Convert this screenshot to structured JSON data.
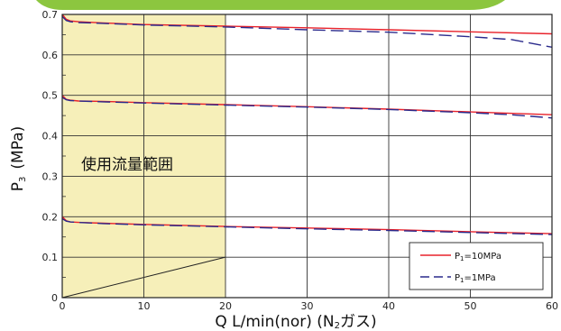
{
  "chart_data": {
    "type": "line",
    "xlabel": "Q L/min(nor) (N",
    "xlabel_sub": "2",
    "xlabel_tail": "ガス)",
    "ylabel": "P",
    "ylabel_sub": "3",
    "ylabel_tail": "(MPa)",
    "xlim": [
      0,
      60
    ],
    "ylim": [
      0,
      0.7
    ],
    "x_ticks": [
      0,
      10,
      20,
      30,
      40,
      50,
      60
    ],
    "y_ticks": [
      0,
      0.1,
      0.2,
      0.3,
      0.4,
      0.5,
      0.6,
      0.7
    ],
    "x_tick_labels": [
      "0",
      "10",
      "20",
      "30",
      "40",
      "50",
      "60"
    ],
    "y_tick_labels": [
      "0",
      "0.1",
      "0.2",
      "0.3",
      "0.4",
      "0.5",
      "0.6",
      "0.7"
    ],
    "grid": true,
    "region": {
      "label": "使用流量範囲",
      "x_range": [
        0,
        20
      ],
      "boundary_line": [
        [
          0,
          0
        ],
        [
          20,
          0.1
        ]
      ],
      "color": "#f6efb9"
    },
    "legend": {
      "placement": "bottom-right",
      "entries": [
        {
          "label_main": "P",
          "label_sub": "1",
          "label_tail": "=10MPa",
          "color": "#e8222b",
          "style": "solid"
        },
        {
          "label_main": "P",
          "label_sub": "1",
          "label_tail": "=1MPa",
          "color": "#2a2a8c",
          "style": "dashed"
        }
      ]
    },
    "series": [
      {
        "legend_index": 0,
        "color": "#e8222b",
        "style": "solid",
        "x": [
          0,
          0.5,
          1,
          2,
          5,
          10,
          20,
          30,
          40,
          50,
          60
        ],
        "y": [
          0.7,
          0.688,
          0.684,
          0.682,
          0.679,
          0.675,
          0.671,
          0.667,
          0.662,
          0.657,
          0.652
        ]
      },
      {
        "legend_index": 1,
        "color": "#2a2a8c",
        "style": "dashed",
        "x": [
          0,
          0.5,
          1,
          2,
          5,
          10,
          20,
          30,
          40,
          50,
          55,
          60
        ],
        "y": [
          0.695,
          0.685,
          0.682,
          0.68,
          0.678,
          0.674,
          0.669,
          0.662,
          0.656,
          0.645,
          0.638,
          0.619
        ]
      },
      {
        "legend_index": 0,
        "color": "#e8222b",
        "style": "solid",
        "x": [
          0,
          0.5,
          1,
          2,
          5,
          10,
          20,
          30,
          40,
          50,
          60
        ],
        "y": [
          0.5,
          0.49,
          0.488,
          0.486,
          0.485,
          0.482,
          0.477,
          0.472,
          0.466,
          0.459,
          0.452
        ]
      },
      {
        "legend_index": 1,
        "color": "#2a2a8c",
        "style": "dashed",
        "x": [
          0,
          0.5,
          1,
          2,
          5,
          10,
          20,
          30,
          40,
          50,
          55,
          60
        ],
        "y": [
          0.495,
          0.489,
          0.487,
          0.486,
          0.484,
          0.481,
          0.476,
          0.471,
          0.465,
          0.457,
          0.452,
          0.444
        ]
      },
      {
        "legend_index": 0,
        "color": "#e8222b",
        "style": "solid",
        "x": [
          0,
          0.5,
          1,
          2,
          5,
          10,
          20,
          30,
          40,
          50,
          60
        ],
        "y": [
          0.2,
          0.19,
          0.187,
          0.186,
          0.184,
          0.181,
          0.176,
          0.172,
          0.168,
          0.163,
          0.158
        ]
      },
      {
        "legend_index": 1,
        "color": "#2a2a8c",
        "style": "dashed",
        "x": [
          0,
          0.5,
          1,
          2,
          5,
          10,
          20,
          30,
          40,
          50,
          60
        ],
        "y": [
          0.195,
          0.189,
          0.187,
          0.186,
          0.183,
          0.18,
          0.175,
          0.17,
          0.166,
          0.161,
          0.156
        ]
      }
    ]
  },
  "banner_color": "#8cc63f"
}
